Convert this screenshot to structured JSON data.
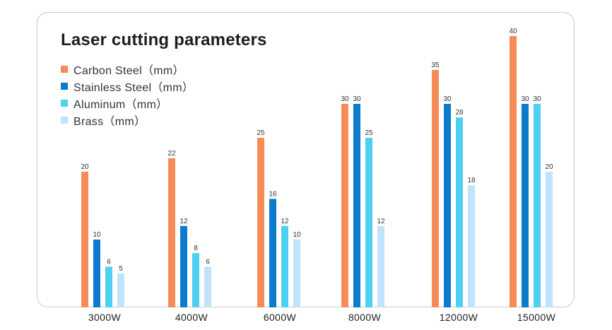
{
  "chart_data": {
    "type": "bar",
    "title": "Laser cutting parameters",
    "categories": [
      "3000W",
      "4000W",
      "6000W",
      "8000W",
      "12000W",
      "15000W"
    ],
    "series": [
      {
        "name": "Carbon Steel（mm）",
        "color": "#f58b57",
        "values": [
          20,
          22,
          25,
          30,
          35,
          40
        ]
      },
      {
        "name": "Stainless Steel（mm）",
        "color": "#0c7bcd",
        "values": [
          10,
          12,
          16,
          30,
          30,
          30
        ]
      },
      {
        "name": "Aluminum（mm）",
        "color": "#4dd0f2",
        "values": [
          6,
          8,
          12,
          25,
          28,
          30
        ]
      },
      {
        "name": "Brass（mm）",
        "color": "#bfe3fa",
        "values": [
          5,
          6,
          10,
          12,
          18,
          20
        ]
      }
    ],
    "ylim": [
      0,
      40
    ],
    "xlabel": "",
    "ylabel": "",
    "grid": false,
    "legend_position": "top-left"
  }
}
